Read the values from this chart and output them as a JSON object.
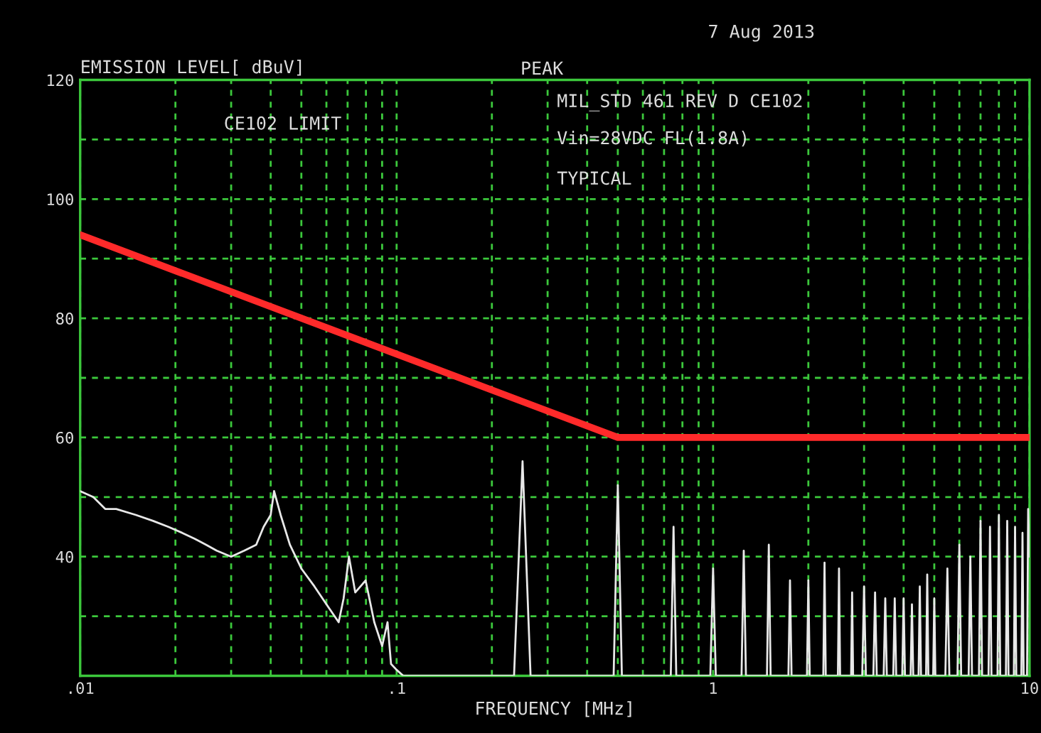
{
  "chart_data": {
    "type": "line",
    "ylabel": "EMISSION LEVEL[ dBuV]",
    "xlabel": "FREQUENCY [MHz]",
    "annotations": [
      "7 Aug 2013",
      "PEAK",
      "CE102 LIMIT",
      "MIL_STD 461 REV D CE102",
      "Vin=28VDC FL(1.8A)",
      "TYPICAL"
    ],
    "log": "x",
    "xlim": [
      0.01,
      10
    ],
    "xticks": [
      {
        "value": 0.01,
        "label": ".01"
      },
      {
        "value": 0.02,
        "label": null
      },
      {
        "value": 0.03,
        "label": null
      },
      {
        "value": 0.04,
        "label": null
      },
      {
        "value": 0.05,
        "label": null
      },
      {
        "value": 0.06,
        "label": null
      },
      {
        "value": 0.07,
        "label": null
      },
      {
        "value": 0.08,
        "label": null
      },
      {
        "value": 0.09,
        "label": null
      },
      {
        "value": 0.1,
        "label": ".1"
      },
      {
        "value": 0.2,
        "label": null
      },
      {
        "value": 0.3,
        "label": null
      },
      {
        "value": 0.4,
        "label": null
      },
      {
        "value": 0.5,
        "label": null
      },
      {
        "value": 0.6,
        "label": null
      },
      {
        "value": 0.7,
        "label": null
      },
      {
        "value": 0.8,
        "label": null
      },
      {
        "value": 0.9,
        "label": null
      },
      {
        "value": 1,
        "label": "1"
      },
      {
        "value": 2,
        "label": null
      },
      {
        "value": 3,
        "label": null
      },
      {
        "value": 4,
        "label": null
      },
      {
        "value": 5,
        "label": null
      },
      {
        "value": 6,
        "label": null
      },
      {
        "value": 7,
        "label": null
      },
      {
        "value": 8,
        "label": null
      },
      {
        "value": 9,
        "label": null
      },
      {
        "value": 10,
        "label": "10"
      }
    ],
    "ylim": [
      20,
      120
    ],
    "yticks": [
      {
        "value": 20,
        "label": null
      },
      {
        "value": 30,
        "label": null
      },
      40,
      {
        "value": 50,
        "label": null
      },
      60,
      {
        "value": 70,
        "label": null
      },
      80,
      {
        "value": 90,
        "label": null
      },
      100,
      {
        "value": 110,
        "label": null
      },
      120
    ],
    "grid": true,
    "line_style": "solid",
    "marker": "none",
    "series": [
      {
        "color": "#ff2a2a",
        "x": [
          0.01,
          0.5,
          10
        ],
        "values": [
          94,
          60,
          60
        ]
      },
      {
        "color": "#e8e8e8",
        "x": [
          0.01,
          0.011,
          0.012,
          0.013,
          0.015,
          0.017,
          0.019,
          0.021,
          0.023,
          0.025,
          0.027,
          0.03,
          0.033,
          0.036,
          0.038,
          0.04,
          0.041,
          0.043,
          0.046,
          0.05,
          0.055,
          0.06,
          0.0656,
          0.068,
          0.0707,
          0.074,
          0.0798,
          0.085,
          0.09,
          0.0936,
          0.096,
          0.1,
          0.105,
          0.235,
          0.25,
          0.265,
          0.485,
          0.5,
          0.515,
          0.735,
          0.75,
          0.765,
          0.98,
          1,
          1.02,
          1.23,
          1.25,
          1.27,
          1.48,
          1.5,
          1.52,
          1.73,
          1.75,
          1.77,
          1.98,
          2,
          2.02,
          2.23,
          2.25,
          2.27,
          2.48,
          2.5,
          2.52,
          2.73,
          2.75,
          2.77,
          2.96,
          3,
          3.04,
          3.21,
          3.25,
          3.29,
          3.46,
          3.5,
          3.54,
          3.71,
          3.75,
          3.79,
          3.96,
          4,
          4.04,
          4.21,
          4.25,
          4.29,
          4.46,
          4.5,
          4.54,
          4.71,
          4.75,
          4.79,
          4.96,
          5,
          5.04,
          5.42,
          5.5,
          5.58,
          5.92,
          6,
          6.08,
          6.42,
          6.5,
          6.58,
          6.92,
          7,
          7.08,
          7.42,
          7.5,
          7.58,
          7.92,
          8,
          8.08,
          8.42,
          8.5,
          8.58,
          8.92,
          9,
          9.08,
          9.42,
          9.5,
          9.58,
          9.82,
          9.9,
          10
        ],
        "values": [
          51,
          50,
          48,
          48,
          47,
          46,
          45,
          44,
          43,
          42,
          41,
          40,
          41,
          42,
          45,
          47,
          51,
          47,
          42,
          38,
          35,
          32,
          29,
          33,
          40,
          34,
          36,
          29,
          25,
          29,
          22,
          21,
          20,
          20,
          56,
          20,
          20,
          52,
          20,
          20,
          45,
          20,
          20,
          38,
          20,
          20,
          41,
          20,
          20,
          42,
          20,
          20,
          36,
          20,
          20,
          36,
          20,
          20,
          39,
          20,
          20,
          38,
          20,
          20,
          34,
          20,
          20,
          35,
          20,
          20,
          34,
          20,
          20,
          33,
          20,
          20,
          33,
          20,
          20,
          33,
          20,
          20,
          32,
          20,
          20,
          35,
          20,
          20,
          37,
          20,
          20,
          33,
          20,
          20,
          38,
          20,
          20,
          42,
          20,
          20,
          40,
          20,
          20,
          46,
          20,
          20,
          45,
          20,
          20,
          47,
          20,
          20,
          46,
          20,
          20,
          45,
          20,
          20,
          44,
          20,
          20,
          48,
          40
        ]
      }
    ]
  }
}
